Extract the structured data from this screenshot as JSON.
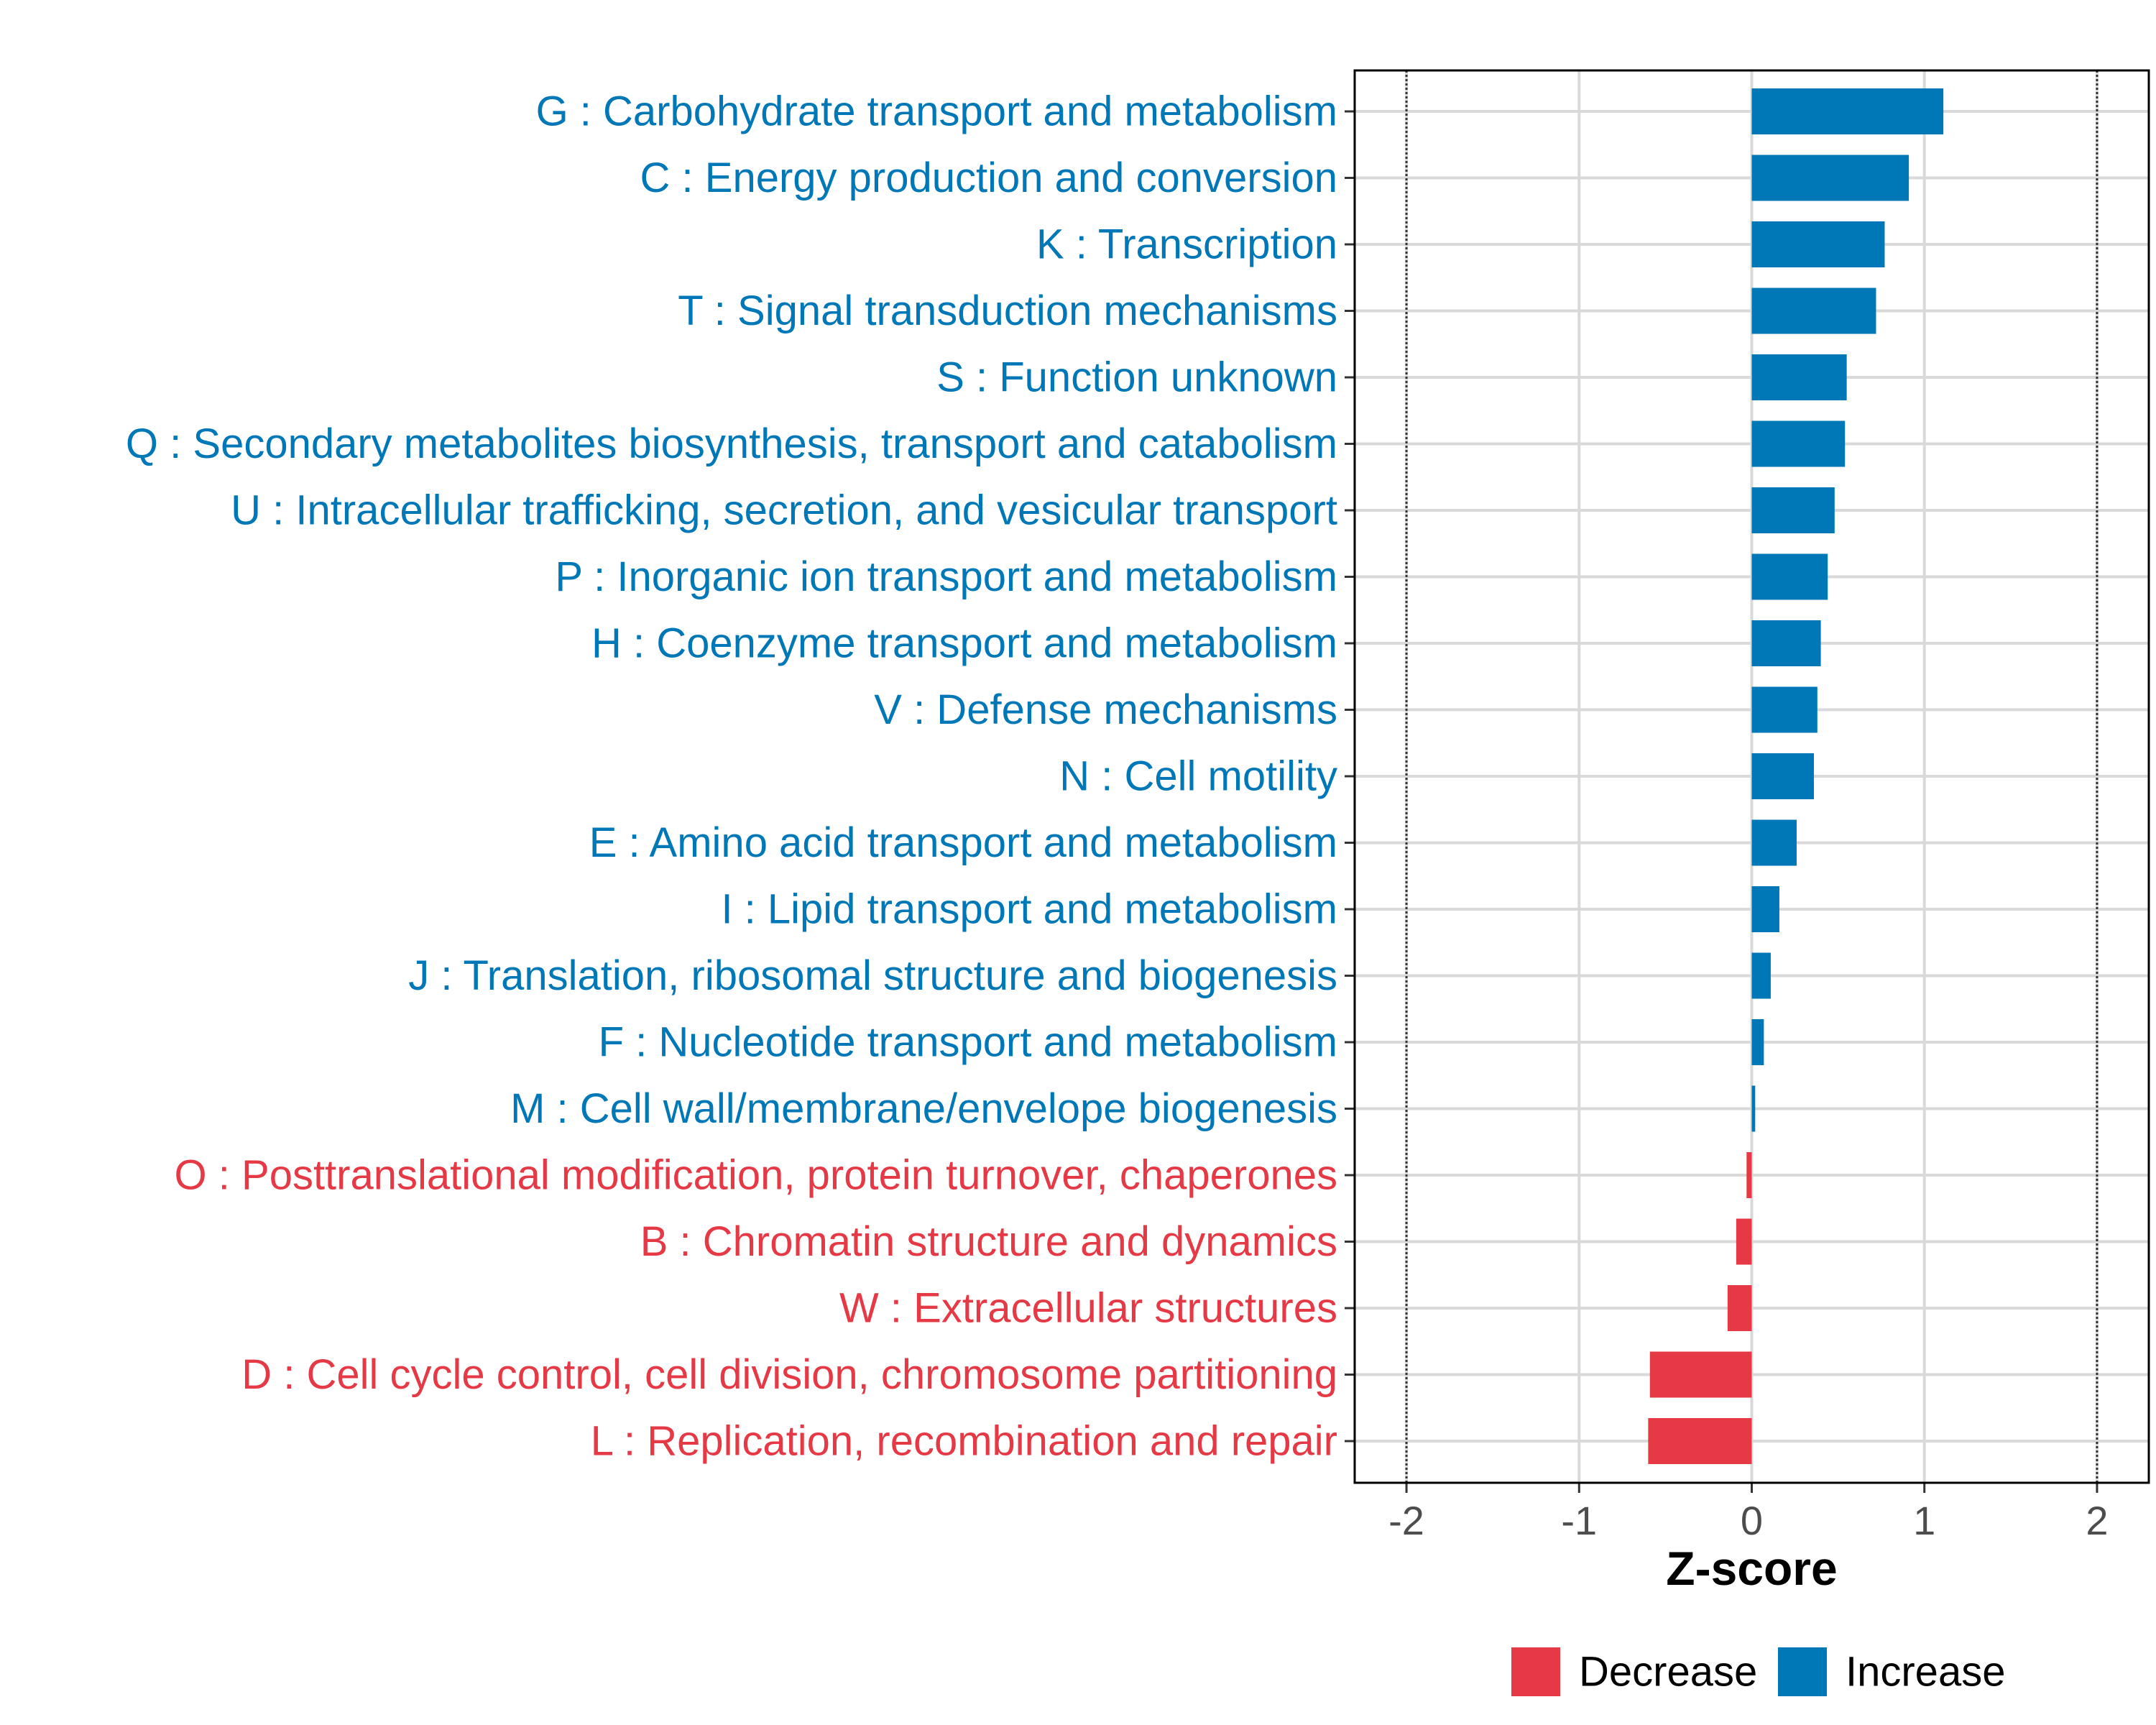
{
  "chart_data": {
    "type": "bar",
    "orientation": "horizontal",
    "title": "",
    "xlabel": "Z-score",
    "ylabel": "",
    "xlim": [
      -2.3,
      2.3
    ],
    "xticks": [
      -2,
      -1,
      0,
      1,
      2
    ],
    "xtick_labels": [
      "-2",
      "-1",
      "0",
      "1",
      "2"
    ],
    "reference_lines": [
      -2,
      2
    ],
    "grid": true,
    "categories": [
      "G : Carbohydrate transport and metabolism",
      "C : Energy production and conversion",
      "K : Transcription",
      "T : Signal transduction mechanisms",
      "S : Function unknown",
      "Q : Secondary metabolites biosynthesis, transport and catabolism",
      "U : Intracellular trafficking, secretion, and vesicular transport",
      "P : Inorganic ion transport and metabolism",
      "H : Coenzyme transport and metabolism",
      "V : Defense mechanisms",
      "N : Cell motility",
      "E : Amino acid transport and metabolism",
      "I : Lipid transport and metabolism",
      "J : Translation, ribosomal structure and biogenesis",
      "F : Nucleotide transport and metabolism",
      "M : Cell wall/membrane/envelope biogenesis",
      "O : Posttranslational modification, protein turnover, chaperones",
      "B : Chromatin structure and dynamics",
      "W : Extracellular structures",
      "D : Cell cycle control, cell division, chromosome partitioning",
      "L : Replication, recombination and repair"
    ],
    "values": [
      1.11,
      0.91,
      0.77,
      0.72,
      0.55,
      0.54,
      0.48,
      0.44,
      0.4,
      0.38,
      0.36,
      0.26,
      0.16,
      0.11,
      0.07,
      0.02,
      -0.03,
      -0.09,
      -0.14,
      -0.59,
      -0.6
    ],
    "groups": [
      "Increase",
      "Increase",
      "Increase",
      "Increase",
      "Increase",
      "Increase",
      "Increase",
      "Increase",
      "Increase",
      "Increase",
      "Increase",
      "Increase",
      "Increase",
      "Increase",
      "Increase",
      "Increase",
      "Decrease",
      "Decrease",
      "Decrease",
      "Decrease",
      "Decrease"
    ],
    "legend": {
      "placement": "bottom-right",
      "entries": [
        {
          "label": "Decrease",
          "color": "#E63946"
        },
        {
          "label": "Increase",
          "color": "#0077B6"
        }
      ]
    },
    "colors": {
      "Increase": "#0077B6",
      "Decrease": "#E63946"
    }
  }
}
